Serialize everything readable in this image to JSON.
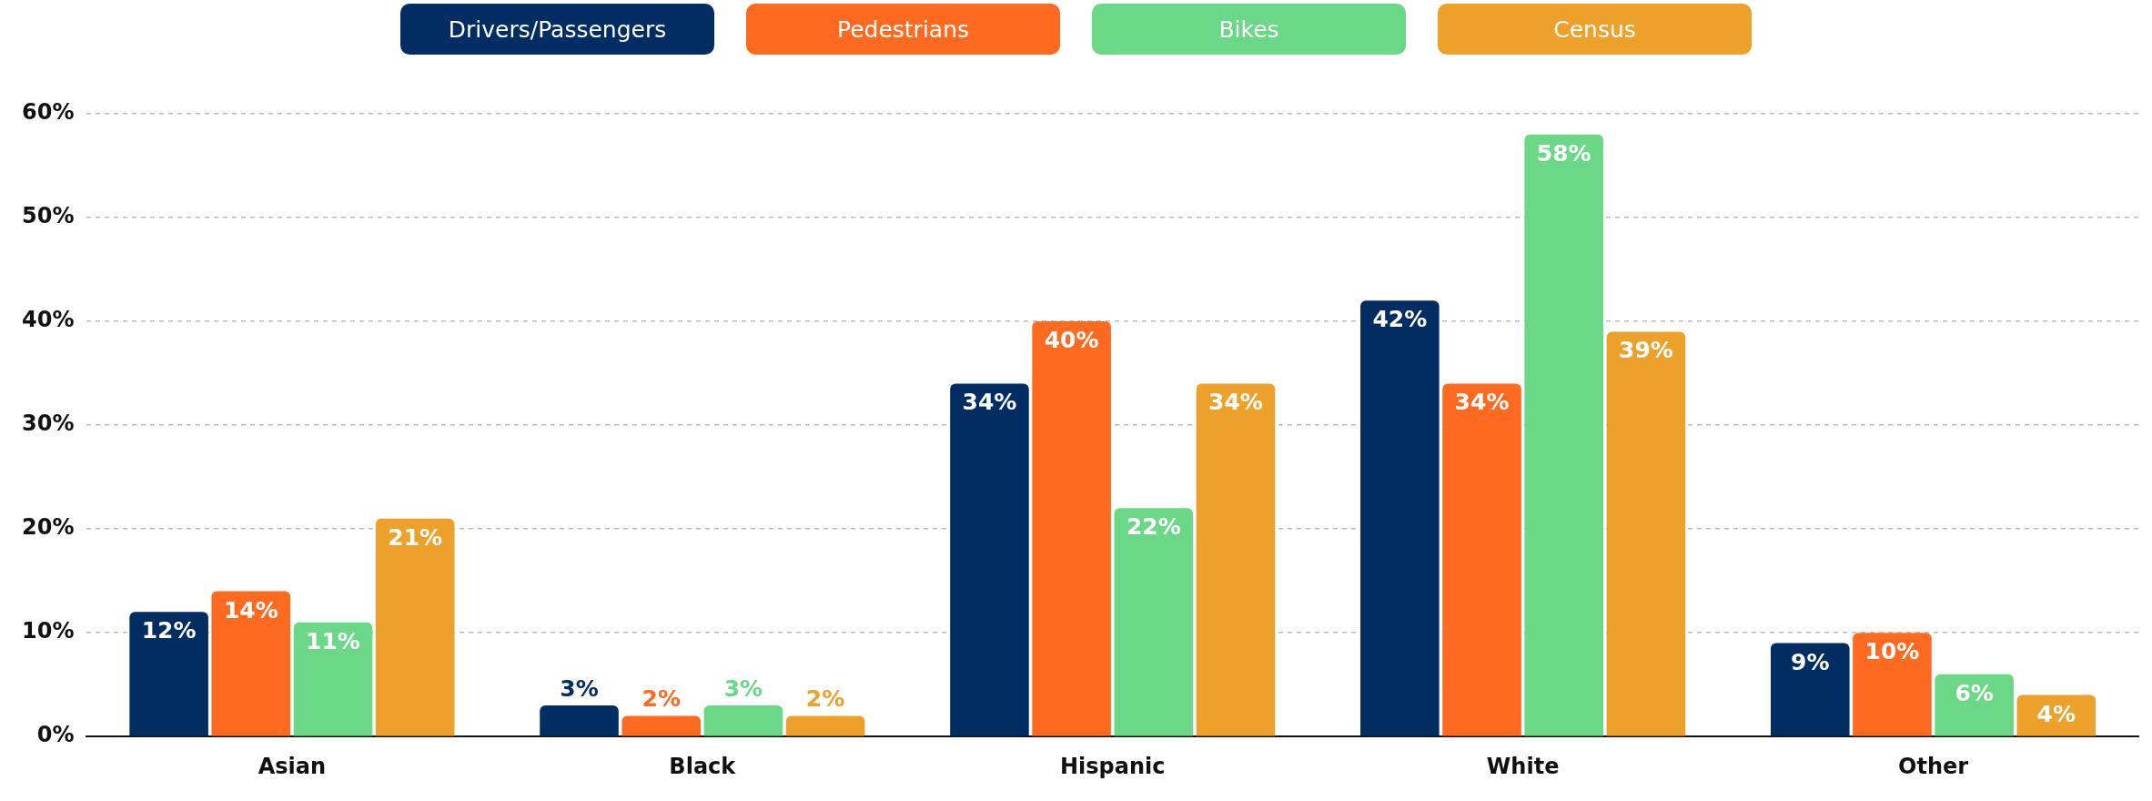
{
  "chart_data": {
    "type": "bar",
    "categories": [
      "Asian",
      "Black",
      "Hispanic",
      "White",
      "Other"
    ],
    "series": [
      {
        "name": "Drivers/Passengers",
        "color": "#012d62",
        "values": [
          12,
          3,
          34,
          42,
          9
        ],
        "value_labels": [
          "12%",
          "3%",
          "34%",
          "42%",
          "9%"
        ]
      },
      {
        "name": "Pedestrians",
        "color": "#ff6a21",
        "values": [
          14,
          2,
          40,
          34,
          10
        ],
        "value_labels": [
          "14%",
          "2%",
          "40%",
          "34%",
          "10%"
        ]
      },
      {
        "name": "Bikes",
        "color": "#6bd888",
        "values": [
          11,
          3,
          22,
          58,
          6
        ],
        "value_labels": [
          "11%",
          "3%",
          "22%",
          "58%",
          "6%"
        ]
      },
      {
        "name": "Census",
        "color": "#eda12b",
        "values": [
          21,
          2,
          34,
          39,
          4
        ],
        "value_labels": [
          "21%",
          "2%",
          "34%",
          "39%",
          "4%"
        ]
      }
    ],
    "ylim": [
      0,
      60
    ],
    "yticks": [
      {
        "value": 0,
        "label": "0%"
      },
      {
        "value": 10,
        "label": "10%"
      },
      {
        "value": 20,
        "label": "20%"
      },
      {
        "value": 30,
        "label": "30%"
      },
      {
        "value": 40,
        "label": "40%"
      },
      {
        "value": 50,
        "label": "50%"
      },
      {
        "value": 60,
        "label": "60%"
      }
    ],
    "grid": "y",
    "legend": "top"
  }
}
